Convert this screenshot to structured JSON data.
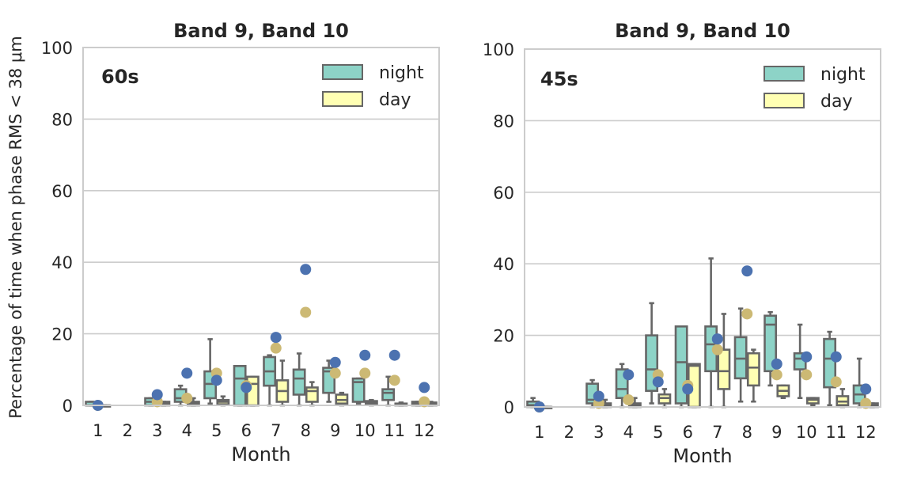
{
  "y_axis_label": "Percentage of time when phase RMS < 38 μm",
  "chart_data": [
    {
      "type": "box",
      "title": "Band 9, Band 10",
      "annotation": "60s",
      "xlabel": "Month",
      "ylabel": "Percentage of time when phase RMS < 38 μm",
      "ylim": [
        0,
        100
      ],
      "yticks": [
        "0",
        "20",
        "40",
        "60",
        "80",
        "100"
      ],
      "categories": [
        "1",
        "2",
        "3",
        "4",
        "5",
        "6",
        "7",
        "8",
        "9",
        "10",
        "11",
        "12"
      ],
      "legend": [
        {
          "name": "night",
          "color": "#8dd3c7"
        },
        {
          "name": "day",
          "color": "#ffffb3"
        }
      ],
      "series": [
        {
          "name": "night",
          "boxes": [
            {
              "month": "1",
              "whislo": 0,
              "q1": 0,
              "med": 0,
              "q3": 1,
              "whishi": 1
            },
            null,
            {
              "month": "3",
              "whislo": 0,
              "q1": 0,
              "med": 1,
              "q3": 2,
              "whishi": 2
            },
            {
              "month": "4",
              "whislo": 0,
              "q1": 1,
              "med": 2,
              "q3": 4.5,
              "whishi": 5.5
            },
            {
              "month": "5",
              "whislo": 0.5,
              "q1": 2,
              "med": 6,
              "q3": 9.5,
              "whishi": 18.5
            },
            {
              "month": "6",
              "whislo": 0,
              "q1": 0,
              "med": 7.5,
              "q3": 11,
              "whishi": 11
            },
            {
              "month": "7",
              "whislo": 0,
              "q1": 5.5,
              "med": 9.5,
              "q3": 13.5,
              "whishi": 14
            },
            {
              "month": "8",
              "whislo": 0,
              "q1": 3,
              "med": 7.5,
              "q3": 10,
              "whishi": 14.5
            },
            {
              "month": "9",
              "whislo": 1,
              "q1": 3.5,
              "med": 9.5,
              "q3": 10.5,
              "whishi": 12.5
            },
            {
              "month": "10",
              "whislo": 0.5,
              "q1": 1,
              "med": 6.5,
              "q3": 7.5,
              "whishi": 7.5
            },
            {
              "month": "11",
              "whislo": 0,
              "q1": 1.5,
              "med": 3.5,
              "q3": 4.5,
              "whishi": 8
            },
            {
              "month": "12",
              "whislo": 0,
              "q1": 0,
              "med": 0.5,
              "q3": 1,
              "whishi": 1
            }
          ]
        },
        {
          "name": "day",
          "boxes": [
            {
              "month": "1",
              "whislo": 0,
              "q1": 0,
              "med": 0,
              "q3": 0,
              "whishi": 0
            },
            null,
            {
              "month": "3",
              "whislo": 0,
              "q1": 0,
              "med": 0.5,
              "q3": 1,
              "whishi": 1
            },
            {
              "month": "4",
              "whislo": 0,
              "q1": 0,
              "med": 0.5,
              "q3": 1,
              "whishi": 2
            },
            {
              "month": "5",
              "whislo": 0,
              "q1": 0.3,
              "med": 1,
              "q3": 1.5,
              "whishi": 2.5
            },
            {
              "month": "6",
              "whislo": 0,
              "q1": 0,
              "med": 6,
              "q3": 8,
              "whishi": 8
            },
            {
              "month": "7",
              "whislo": 0,
              "q1": 1,
              "med": 4,
              "q3": 7,
              "whishi": 12.5
            },
            {
              "month": "8",
              "whislo": 0,
              "q1": 1,
              "med": 4,
              "q3": 5,
              "whishi": 6.5
            },
            {
              "month": "9",
              "whislo": 0,
              "q1": 0.5,
              "med": 1.5,
              "q3": 3,
              "whishi": 3.5
            },
            {
              "month": "10",
              "whislo": 0,
              "q1": 0.3,
              "med": 0.8,
              "q3": 1.2,
              "whishi": 1.5
            },
            {
              "month": "11",
              "whislo": 0,
              "q1": 0,
              "med": 0.3,
              "q3": 0.5,
              "whishi": 0.8
            },
            {
              "month": "12",
              "whislo": 0,
              "q1": 0,
              "med": 0.3,
              "q3": 0.8,
              "whishi": 1
            }
          ]
        }
      ],
      "points": [
        {
          "name": "night-reference",
          "color": "#4c72b0",
          "values": [
            0,
            null,
            3,
            9,
            7,
            5,
            19,
            38,
            12,
            14,
            14,
            5
          ]
        },
        {
          "name": "day-reference",
          "color": "#ccb974",
          "values": [
            0,
            null,
            1,
            2,
            9,
            5.5,
            16,
            26,
            9,
            9,
            7,
            1
          ]
        }
      ]
    },
    {
      "type": "box",
      "title": "Band 9, Band 10",
      "annotation": "45s",
      "xlabel": "Month",
      "ylabel": "",
      "ylim": [
        0,
        100
      ],
      "yticks": [
        "0",
        "20",
        "40",
        "60",
        "80",
        "100"
      ],
      "categories": [
        "1",
        "2",
        "3",
        "4",
        "5",
        "6",
        "7",
        "8",
        "9",
        "10",
        "11",
        "12"
      ],
      "legend": [
        {
          "name": "night",
          "color": "#8dd3c7"
        },
        {
          "name": "day",
          "color": "#ffffb3"
        }
      ],
      "series": [
        {
          "name": "night",
          "boxes": [
            {
              "month": "1",
              "whislo": 0,
              "q1": 0,
              "med": 0.5,
              "q3": 1.5,
              "whishi": 2.5
            },
            null,
            {
              "month": "3",
              "whislo": 0,
              "q1": 1,
              "med": 2,
              "q3": 6.5,
              "whishi": 7.5
            },
            {
              "month": "4",
              "whislo": 0,
              "q1": 2.5,
              "med": 5,
              "q3": 10.5,
              "whishi": 12
            },
            {
              "month": "5",
              "whislo": 1,
              "q1": 4.5,
              "med": 10.5,
              "q3": 20,
              "whishi": 29
            },
            {
              "month": "6",
              "whislo": 0,
              "q1": 1,
              "med": 12.5,
              "q3": 22.5,
              "whishi": 22.5
            },
            {
              "month": "7",
              "whislo": 0,
              "q1": 10,
              "med": 17.5,
              "q3": 22.5,
              "whishi": 41.5
            },
            {
              "month": "8",
              "whislo": 1.5,
              "q1": 8,
              "med": 13.5,
              "q3": 19.5,
              "whishi": 27.5
            },
            {
              "month": "9",
              "whislo": 6,
              "q1": 10,
              "med": 23,
              "q3": 25.5,
              "whishi": 26.5
            },
            {
              "month": "10",
              "whislo": 2.5,
              "q1": 10.5,
              "med": 13.5,
              "q3": 15,
              "whishi": 23
            },
            {
              "month": "11",
              "whislo": 0.5,
              "q1": 5.5,
              "med": 13.5,
              "q3": 19,
              "whishi": 21
            },
            {
              "month": "12",
              "whislo": 0,
              "q1": 1,
              "med": 3.5,
              "q3": 6,
              "whishi": 13.5
            }
          ]
        },
        {
          "name": "day",
          "boxes": [
            {
              "month": "1",
              "whislo": 0,
              "q1": 0,
              "med": 0,
              "q3": 0,
              "whishi": 0
            },
            null,
            {
              "month": "3",
              "whislo": 0,
              "q1": 0,
              "med": 0.5,
              "q3": 1,
              "whishi": 2
            },
            {
              "month": "4",
              "whislo": 0,
              "q1": 0,
              "med": 0.5,
              "q3": 1,
              "whishi": 2.5
            },
            {
              "month": "5",
              "whislo": 0,
              "q1": 1,
              "med": 2.5,
              "q3": 3.5,
              "whishi": 5
            },
            {
              "month": "6",
              "whislo": 0,
              "q1": 0,
              "med": 11.5,
              "q3": 12,
              "whishi": 12
            },
            {
              "month": "7",
              "whislo": 0,
              "q1": 5,
              "med": 10,
              "q3": 16,
              "whishi": 26
            },
            {
              "month": "8",
              "whislo": 1.5,
              "q1": 6,
              "med": 11,
              "q3": 15,
              "whishi": 16
            },
            {
              "month": "9",
              "whislo": 2.5,
              "q1": 3,
              "med": 4.5,
              "q3": 6,
              "whishi": 6
            },
            {
              "month": "10",
              "whislo": 0.5,
              "q1": 1,
              "med": 2,
              "q3": 2.5,
              "whishi": 2.5
            },
            {
              "month": "11",
              "whislo": 0,
              "q1": 0.5,
              "med": 1.5,
              "q3": 3,
              "whishi": 5
            },
            {
              "month": "12",
              "whislo": 0,
              "q1": 0,
              "med": 0.5,
              "q3": 1,
              "whishi": 1
            }
          ]
        }
      ],
      "points": [
        {
          "name": "night-reference",
          "color": "#4c72b0",
          "values": [
            0,
            null,
            3,
            9,
            7,
            5,
            19,
            38,
            12,
            14,
            14,
            5
          ]
        },
        {
          "name": "day-reference",
          "color": "#ccb974",
          "values": [
            0,
            null,
            1,
            2,
            9,
            6,
            16,
            26,
            9,
            9,
            7,
            1
          ]
        }
      ]
    }
  ]
}
